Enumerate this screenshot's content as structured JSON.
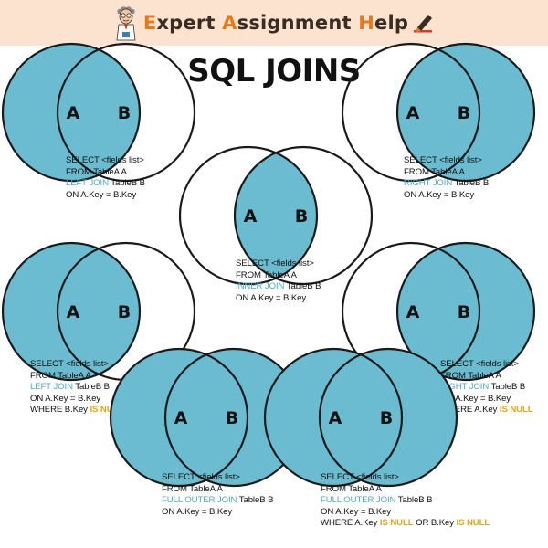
{
  "brand": {
    "parts": [
      {
        "t": "E",
        "cap": true
      },
      {
        "t": "xpert ",
        "cap": false
      },
      {
        "t": "A",
        "cap": true
      },
      {
        "t": "ssignment ",
        "cap": false
      },
      {
        "t": "H",
        "cap": true
      },
      {
        "t": "elp",
        "cap": false
      }
    ]
  },
  "title": "SQL JOINS",
  "colors": {
    "fill": "#6bbcd0",
    "stroke": "#1a1a1a",
    "keyword": "#4fa9c6",
    "null_kw": "#e0a512",
    "banner": "#fbe3cf"
  },
  "joins": [
    {
      "id": "left-join",
      "label_a": "A",
      "label_b": "B",
      "fill": "a",
      "code": [
        [
          [
            "SELECT <fields list>",
            ""
          ]
        ],
        [
          [
            "FROM TableA A",
            ""
          ]
        ],
        [
          [
            "LEFT JOIN",
            "kw"
          ],
          [
            " TableB B",
            ""
          ]
        ],
        [
          [
            "ON A.Key = B.Key",
            ""
          ]
        ]
      ]
    },
    {
      "id": "right-join",
      "label_a": "A",
      "label_b": "B",
      "fill": "b",
      "code": [
        [
          [
            "SELECT <fields list>",
            ""
          ]
        ],
        [
          [
            "FROM TableA A",
            ""
          ]
        ],
        [
          [
            "RIGHT JOIN",
            "kw"
          ],
          [
            " TableB B",
            ""
          ]
        ],
        [
          [
            "ON A.Key = B.Key",
            ""
          ]
        ]
      ]
    },
    {
      "id": "inner-join",
      "label_a": "A",
      "label_b": "B",
      "fill": "inner",
      "code": [
        [
          [
            "SELECT <fields list>",
            ""
          ]
        ],
        [
          [
            "FROM TableA A",
            ""
          ]
        ],
        [
          [
            "INNER JOIN",
            "kw"
          ],
          [
            " TableB B",
            ""
          ]
        ],
        [
          [
            "ON A.Key = B.Key",
            ""
          ]
        ]
      ]
    },
    {
      "id": "left-excl-join",
      "label_a": "A",
      "label_b": "B",
      "fill": "a-only",
      "code": [
        [
          [
            "SELECT <fields list>",
            ""
          ]
        ],
        [
          [
            "FROM TableA A",
            ""
          ]
        ],
        [
          [
            "LEFT JOIN",
            "kw"
          ],
          [
            " TableB B",
            ""
          ]
        ],
        [
          [
            "ON A.Key = B.Key",
            ""
          ]
        ],
        [
          [
            "WHERE B.Key ",
            ""
          ],
          [
            "IS NULL",
            "nul"
          ]
        ]
      ]
    },
    {
      "id": "right-excl-join",
      "label_a": "A",
      "label_b": "B",
      "fill": "b-only",
      "code": [
        [
          [
            "SELECT <fields list>",
            ""
          ]
        ],
        [
          [
            "FROM TableA A",
            ""
          ]
        ],
        [
          [
            "RIGHT JOIN",
            "kw"
          ],
          [
            " TableB B",
            ""
          ]
        ],
        [
          [
            "ON A.Key = B.Key",
            ""
          ]
        ],
        [
          [
            "WHERE A.Key ",
            ""
          ],
          [
            "IS NULL",
            "nul"
          ]
        ]
      ]
    },
    {
      "id": "full-outer-join",
      "label_a": "A",
      "label_b": "B",
      "fill": "all",
      "code": [
        [
          [
            "SELECT <fields list>",
            ""
          ]
        ],
        [
          [
            "FROM TableA A",
            ""
          ]
        ],
        [
          [
            "FULL OUTER JOIN",
            "kw"
          ],
          [
            " TableB B",
            ""
          ]
        ],
        [
          [
            "ON A.Key = B.Key",
            ""
          ]
        ]
      ]
    },
    {
      "id": "full-outer-excl-join",
      "label_a": "A",
      "label_b": "B",
      "fill": "xor",
      "code": [
        [
          [
            "SELECT <fields list>",
            ""
          ]
        ],
        [
          [
            "FROM TableA A",
            ""
          ]
        ],
        [
          [
            "FULL OUTER JOIN",
            "kw"
          ],
          [
            " TableB B",
            ""
          ]
        ],
        [
          [
            "ON A.Key = B.Key",
            ""
          ]
        ],
        [
          [
            "WHERE A.Key ",
            ""
          ],
          [
            "IS NULL",
            "nul"
          ],
          [
            " OR B.Key ",
            ""
          ],
          [
            "IS NULL",
            "nul"
          ]
        ]
      ]
    }
  ]
}
